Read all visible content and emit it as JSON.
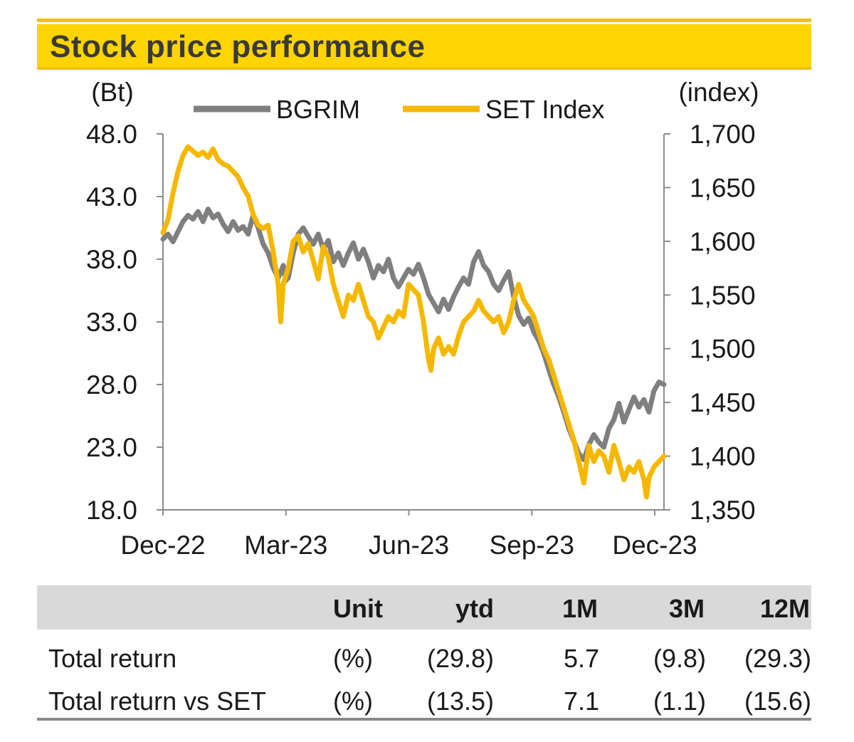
{
  "title": "Stock price performance",
  "chart_data": {
    "type": "line",
    "left_axis_label": "(Bt)",
    "right_axis_label": "(index)",
    "left_ticks": [
      "48.0",
      "43.0",
      "38.0",
      "33.0",
      "28.0",
      "23.0",
      "18.0"
    ],
    "right_ticks": [
      "1,700",
      "1,650",
      "1,600",
      "1,550",
      "1,500",
      "1,450",
      "1,400",
      "1,350"
    ],
    "x_ticks": [
      "Dec-22",
      "Mar-23",
      "Jun-23",
      "Sep-23",
      "Dec-23"
    ],
    "ylim_left": [
      18,
      48
    ],
    "ylim_right": [
      1350,
      1700
    ],
    "grid": false,
    "legend_position": "top",
    "series": [
      {
        "name": "BGRIM",
        "axis": "left",
        "color": "#7f7f7f",
        "points": [
          [
            0.0,
            39.6
          ],
          [
            0.01,
            40.0
          ],
          [
            0.02,
            39.4
          ],
          [
            0.03,
            40.2
          ],
          [
            0.04,
            41.0
          ],
          [
            0.05,
            41.5
          ],
          [
            0.06,
            41.2
          ],
          [
            0.07,
            41.8
          ],
          [
            0.08,
            41.0
          ],
          [
            0.09,
            42.0
          ],
          [
            0.1,
            41.3
          ],
          [
            0.11,
            41.6
          ],
          [
            0.12,
            40.8
          ],
          [
            0.13,
            40.2
          ],
          [
            0.14,
            41.0
          ],
          [
            0.15,
            40.3
          ],
          [
            0.16,
            40.6
          ],
          [
            0.17,
            40.0
          ],
          [
            0.18,
            41.5
          ],
          [
            0.19,
            40.5
          ],
          [
            0.2,
            39.2
          ],
          [
            0.21,
            38.5
          ],
          [
            0.22,
            37.3
          ],
          [
            0.23,
            36.5
          ],
          [
            0.24,
            37.5
          ],
          [
            0.245,
            36.3
          ],
          [
            0.25,
            36.5
          ],
          [
            0.26,
            38.5
          ],
          [
            0.27,
            40.0
          ],
          [
            0.28,
            40.5
          ],
          [
            0.29,
            39.8
          ],
          [
            0.3,
            39.2
          ],
          [
            0.31,
            40.0
          ],
          [
            0.32,
            38.8
          ],
          [
            0.33,
            39.5
          ],
          [
            0.34,
            37.8
          ],
          [
            0.35,
            38.5
          ],
          [
            0.36,
            37.5
          ],
          [
            0.37,
            38.5
          ],
          [
            0.38,
            39.3
          ],
          [
            0.39,
            38.0
          ],
          [
            0.4,
            38.8
          ],
          [
            0.41,
            37.8
          ],
          [
            0.42,
            36.5
          ],
          [
            0.43,
            37.5
          ],
          [
            0.44,
            37.0
          ],
          [
            0.45,
            38.0
          ],
          [
            0.46,
            36.5
          ],
          [
            0.47,
            35.8
          ],
          [
            0.48,
            36.5
          ],
          [
            0.49,
            37.2
          ],
          [
            0.5,
            36.8
          ],
          [
            0.51,
            37.6
          ],
          [
            0.52,
            36.5
          ],
          [
            0.53,
            35.2
          ],
          [
            0.54,
            34.5
          ],
          [
            0.55,
            33.8
          ],
          [
            0.56,
            34.8
          ],
          [
            0.57,
            34.0
          ],
          [
            0.58,
            35.0
          ],
          [
            0.59,
            35.8
          ],
          [
            0.6,
            36.5
          ],
          [
            0.61,
            36.0
          ],
          [
            0.62,
            37.8
          ],
          [
            0.63,
            38.6
          ],
          [
            0.64,
            37.5
          ],
          [
            0.65,
            37.0
          ],
          [
            0.66,
            36.0
          ],
          [
            0.67,
            35.5
          ],
          [
            0.68,
            36.3
          ],
          [
            0.69,
            37.0
          ],
          [
            0.7,
            35.0
          ],
          [
            0.71,
            33.5
          ],
          [
            0.72,
            32.8
          ],
          [
            0.73,
            33.3
          ],
          [
            0.74,
            32.2
          ],
          [
            0.75,
            31.5
          ],
          [
            0.76,
            30.5
          ],
          [
            0.77,
            29.2
          ],
          [
            0.78,
            28.0
          ],
          [
            0.79,
            27.0
          ],
          [
            0.8,
            25.8
          ],
          [
            0.81,
            24.5
          ],
          [
            0.82,
            23.5
          ],
          [
            0.83,
            22.5
          ],
          [
            0.84,
            22.0
          ],
          [
            0.85,
            23.2
          ],
          [
            0.86,
            24.0
          ],
          [
            0.87,
            23.4
          ],
          [
            0.88,
            23.0
          ],
          [
            0.89,
            24.5
          ],
          [
            0.9,
            25.2
          ],
          [
            0.91,
            26.5
          ],
          [
            0.92,
            25.0
          ],
          [
            0.93,
            26.0
          ],
          [
            0.94,
            27.0
          ],
          [
            0.95,
            26.2
          ],
          [
            0.96,
            26.8
          ],
          [
            0.97,
            25.8
          ],
          [
            0.98,
            27.5
          ],
          [
            0.99,
            28.2
          ],
          [
            1.0,
            28.0
          ]
        ]
      },
      {
        "name": "SET Index",
        "axis": "right",
        "color": "#f5b800",
        "points": [
          [
            0.0,
            1608
          ],
          [
            0.01,
            1620
          ],
          [
            0.02,
            1645
          ],
          [
            0.03,
            1665
          ],
          [
            0.04,
            1680
          ],
          [
            0.05,
            1688
          ],
          [
            0.06,
            1684
          ],
          [
            0.07,
            1680
          ],
          [
            0.08,
            1683
          ],
          [
            0.09,
            1678
          ],
          [
            0.1,
            1686
          ],
          [
            0.11,
            1676
          ],
          [
            0.12,
            1672
          ],
          [
            0.13,
            1670
          ],
          [
            0.14,
            1665
          ],
          [
            0.15,
            1660
          ],
          [
            0.16,
            1650
          ],
          [
            0.17,
            1642
          ],
          [
            0.18,
            1625
          ],
          [
            0.19,
            1615
          ],
          [
            0.2,
            1612
          ],
          [
            0.21,
            1615
          ],
          [
            0.22,
            1590
          ],
          [
            0.23,
            1560
          ],
          [
            0.235,
            1525
          ],
          [
            0.24,
            1560
          ],
          [
            0.25,
            1575
          ],
          [
            0.26,
            1600
          ],
          [
            0.27,
            1605
          ],
          [
            0.28,
            1590
          ],
          [
            0.29,
            1598
          ],
          [
            0.3,
            1582
          ],
          [
            0.31,
            1565
          ],
          [
            0.32,
            1595
          ],
          [
            0.33,
            1585
          ],
          [
            0.34,
            1560
          ],
          [
            0.35,
            1545
          ],
          [
            0.36,
            1530
          ],
          [
            0.37,
            1550
          ],
          [
            0.38,
            1545
          ],
          [
            0.39,
            1560
          ],
          [
            0.4,
            1545
          ],
          [
            0.41,
            1530
          ],
          [
            0.42,
            1525
          ],
          [
            0.43,
            1510
          ],
          [
            0.44,
            1520
          ],
          [
            0.45,
            1530
          ],
          [
            0.46,
            1525
          ],
          [
            0.47,
            1535
          ],
          [
            0.48,
            1530
          ],
          [
            0.49,
            1560
          ],
          [
            0.5,
            1555
          ],
          [
            0.51,
            1550
          ],
          [
            0.52,
            1525
          ],
          [
            0.53,
            1490
          ],
          [
            0.535,
            1480
          ],
          [
            0.54,
            1500
          ],
          [
            0.55,
            1510
          ],
          [
            0.56,
            1495
          ],
          [
            0.57,
            1502
          ],
          [
            0.58,
            1495
          ],
          [
            0.59,
            1512
          ],
          [
            0.6,
            1525
          ],
          [
            0.61,
            1530
          ],
          [
            0.62,
            1535
          ],
          [
            0.63,
            1545
          ],
          [
            0.64,
            1535
          ],
          [
            0.65,
            1530
          ],
          [
            0.66,
            1525
          ],
          [
            0.67,
            1530
          ],
          [
            0.68,
            1515
          ],
          [
            0.69,
            1525
          ],
          [
            0.7,
            1545
          ],
          [
            0.71,
            1560
          ],
          [
            0.72,
            1545
          ],
          [
            0.73,
            1538
          ],
          [
            0.74,
            1530
          ],
          [
            0.75,
            1515
          ],
          [
            0.76,
            1500
          ],
          [
            0.77,
            1490
          ],
          [
            0.78,
            1475
          ],
          [
            0.79,
            1460
          ],
          [
            0.8,
            1445
          ],
          [
            0.81,
            1430
          ],
          [
            0.82,
            1415
          ],
          [
            0.83,
            1395
          ],
          [
            0.84,
            1375
          ],
          [
            0.85,
            1410
          ],
          [
            0.86,
            1395
          ],
          [
            0.87,
            1405
          ],
          [
            0.88,
            1400
          ],
          [
            0.89,
            1385
          ],
          [
            0.9,
            1410
          ],
          [
            0.91,
            1395
          ],
          [
            0.92,
            1378
          ],
          [
            0.93,
            1390
          ],
          [
            0.94,
            1385
          ],
          [
            0.95,
            1395
          ],
          [
            0.96,
            1378
          ],
          [
            0.965,
            1362
          ],
          [
            0.97,
            1380
          ],
          [
            0.98,
            1390
          ],
          [
            0.99,
            1395
          ],
          [
            1.0,
            1400
          ]
        ]
      }
    ]
  },
  "table": {
    "headers": [
      "",
      "Unit",
      "ytd",
      "1M",
      "3M",
      "12M"
    ],
    "rows": [
      {
        "label": "Total return",
        "unit": "(%)",
        "ytd": "(29.8)",
        "m1": "5.7",
        "m3": "(9.8)",
        "m12": "(29.3)"
      },
      {
        "label": "Total return vs SET",
        "unit": "(%)",
        "ytd": "(13.5)",
        "m1": "7.1",
        "m3": "(1.1)",
        "m12": "(15.6)"
      }
    ]
  }
}
